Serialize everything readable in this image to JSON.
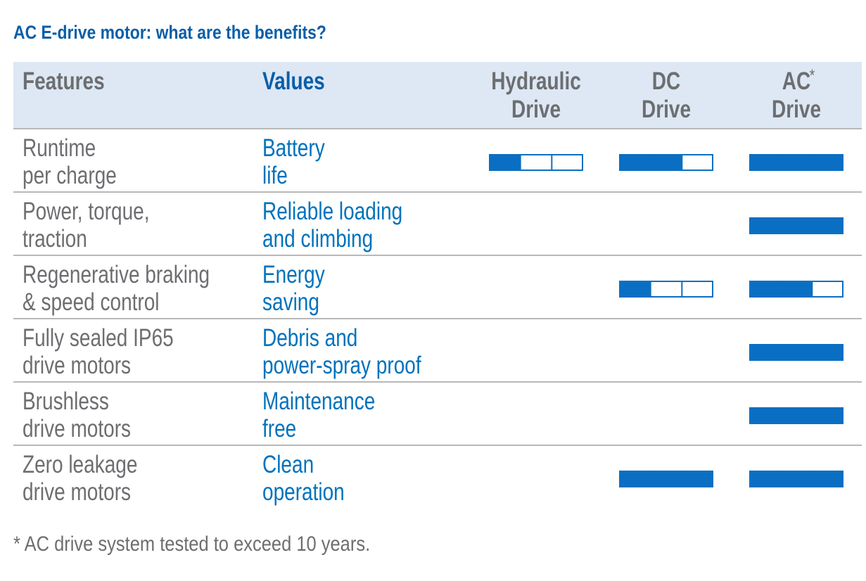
{
  "title": "AC E-drive motor: what are the benefits?",
  "table": {
    "header": {
      "features": "Features",
      "values": "Values",
      "drives": [
        {
          "lines": [
            "Hydraulic",
            "Drive"
          ]
        },
        {
          "lines": [
            "DC",
            "Drive"
          ]
        },
        {
          "lines": [
            "AC",
            "Drive"
          ],
          "sup": "*"
        }
      ]
    },
    "rows": [
      {
        "feature": [
          "Runtime",
          "per charge"
        ],
        "value": [
          "Battery",
          "life"
        ],
        "ratings": [
          1,
          2,
          3
        ]
      },
      {
        "feature": [
          "Power, torque,",
          "traction"
        ],
        "value": [
          "Reliable loading",
          "and climbing"
        ],
        "ratings": [
          null,
          null,
          3
        ]
      },
      {
        "feature": [
          "Regenerative braking",
          "& speed control"
        ],
        "value": [
          "Energy",
          "saving"
        ],
        "ratings": [
          null,
          1,
          2
        ]
      },
      {
        "feature": [
          "Fully sealed IP65",
          "drive motors"
        ],
        "value": [
          "Debris and",
          "power-spray proof"
        ],
        "ratings": [
          null,
          null,
          3
        ]
      },
      {
        "feature": [
          "Brushless",
          "drive motors"
        ],
        "value": [
          "Maintenance",
          "free"
        ],
        "ratings": [
          null,
          null,
          3
        ]
      },
      {
        "feature": [
          "Zero leakage",
          "drive motors"
        ],
        "value": [
          "Clean",
          "operation"
        ],
        "ratings": [
          null,
          3,
          3
        ]
      }
    ]
  },
  "footnote": "* AC drive system tested to exceed 10 years."
}
